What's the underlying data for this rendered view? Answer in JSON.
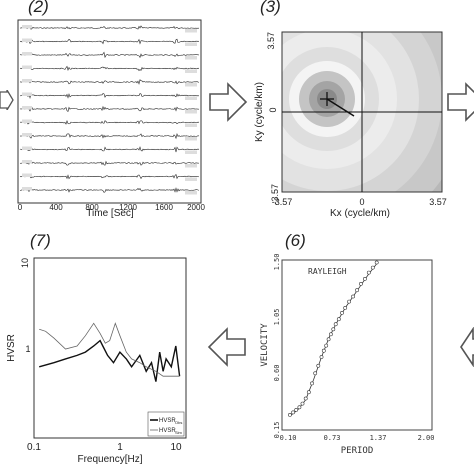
{
  "panels": {
    "p2": {
      "label": "(2)",
      "x_label": "Time [Sec]",
      "x_ticks": [
        "0",
        "400",
        "800",
        "1200",
        "1600",
        "2000"
      ],
      "traces": 13
    },
    "p3": {
      "label": "(3)",
      "y_label": "Ky (cycle/km)",
      "x_label": "Kx (cycle/km)",
      "y_ticks": [
        "3.57",
        "0",
        "-3.57"
      ],
      "x_ticks": [
        "-3.57",
        "0",
        "3.57"
      ]
    },
    "p6": {
      "label": "(6)",
      "title": "RAYLEIGH",
      "y_label": "VELOCITY",
      "x_label": "PERIOD",
      "y_ticks": [
        "0.15",
        "0.60",
        "1.05",
        "1.50"
      ],
      "x_ticks": [
        "0.10",
        "0.73",
        "1.37",
        "2.00"
      ]
    },
    "p7": {
      "label": "(7)",
      "y_label": "HVSR",
      "x_label": "Frequency[Hz]",
      "y_ticks": [
        "10",
        "1"
      ],
      "x_ticks": [
        "0.1",
        "1",
        "10"
      ],
      "legend": [
        {
          "name": "HVSR",
          "sub": "Obs"
        },
        {
          "name": "HVSR",
          "sub": "Sim"
        }
      ]
    }
  },
  "arrows": [
    {
      "name": "arrow-left-edge",
      "direction": "right"
    },
    {
      "name": "arrow-2-to-3",
      "direction": "right"
    },
    {
      "name": "arrow-3-out",
      "direction": "right"
    },
    {
      "name": "arrow-6-to-7",
      "direction": "left"
    },
    {
      "name": "arrow-right-edge",
      "direction": "left"
    }
  ],
  "chart_data": [
    {
      "type": "line",
      "panel": "p6",
      "title": "RAYLEIGH",
      "xlabel": "PERIOD",
      "ylabel": "VELOCITY",
      "xlim": [
        0.1,
        2.0
      ],
      "ylim": [
        0.15,
        1.5
      ],
      "series": [
        {
          "marker": "circle",
          "x": [
            0.2,
            0.24,
            0.28,
            0.32,
            0.36,
            0.4,
            0.44,
            0.48,
            0.52,
            0.56,
            0.6,
            0.63,
            0.66,
            0.69,
            0.72,
            0.75,
            0.78,
            0.82,
            0.86,
            0.9,
            0.95,
            1.0,
            1.05,
            1.1,
            1.15,
            1.2,
            1.25,
            1.3
          ],
          "y": [
            0.27,
            0.29,
            0.31,
            0.33,
            0.36,
            0.4,
            0.45,
            0.52,
            0.6,
            0.66,
            0.73,
            0.78,
            0.82,
            0.87,
            0.91,
            0.95,
            0.99,
            1.03,
            1.08,
            1.12,
            1.17,
            1.21,
            1.26,
            1.31,
            1.35,
            1.4,
            1.44,
            1.48
          ]
        },
        {
          "marker": "none",
          "x": [
            0.2,
            0.3,
            0.4,
            0.5,
            0.6,
            0.7,
            0.8,
            0.9,
            1.0,
            1.1,
            1.2,
            1.3
          ],
          "y": [
            0.26,
            0.31,
            0.39,
            0.55,
            0.73,
            0.89,
            1.01,
            1.12,
            1.21,
            1.3,
            1.39,
            1.47
          ]
        }
      ]
    },
    {
      "type": "line",
      "panel": "p7",
      "xlabel": "Frequency[Hz]",
      "ylabel": "HVSR",
      "xscale": "log",
      "yscale": "log",
      "xlim": [
        0.1,
        20
      ],
      "ylim": [
        0.3,
        10
      ],
      "series": [
        {
          "name": "HVSR Obs",
          "x": [
            0.12,
            0.2,
            0.3,
            0.45,
            0.6,
            0.8,
            1.0,
            1.1,
            1.3,
            1.6,
            2.0,
            2.5,
            3.0,
            4.0,
            5.0,
            6.0,
            7.0,
            8.0,
            9.0,
            10.0,
            12.0,
            14.0,
            16.0
          ],
          "y": [
            1.2,
            1.3,
            1.4,
            1.5,
            1.6,
            1.8,
            2.0,
            1.8,
            1.5,
            1.3,
            1.6,
            1.4,
            1.2,
            1.5,
            1.1,
            1.3,
            0.9,
            1.6,
            1.1,
            1.4,
            1.2,
            1.8,
            1.0
          ]
        },
        {
          "name": "HVSR Sim",
          "x": [
            0.12,
            0.15,
            0.2,
            0.3,
            0.45,
            0.6,
            0.8,
            1.0,
            1.2,
            1.4,
            1.7,
            2.0,
            2.5,
            3.0,
            4.0,
            5.0,
            7.0,
            9.0,
            12.0,
            16.0
          ],
          "y": [
            2.5,
            2.4,
            2.1,
            1.7,
            1.8,
            2.2,
            2.8,
            2.3,
            1.9,
            2.0,
            2.8,
            2.2,
            1.6,
            1.4,
            1.3,
            1.2,
            1.1,
            1.0,
            1.0,
            1.0
          ]
        }
      ]
    }
  ]
}
